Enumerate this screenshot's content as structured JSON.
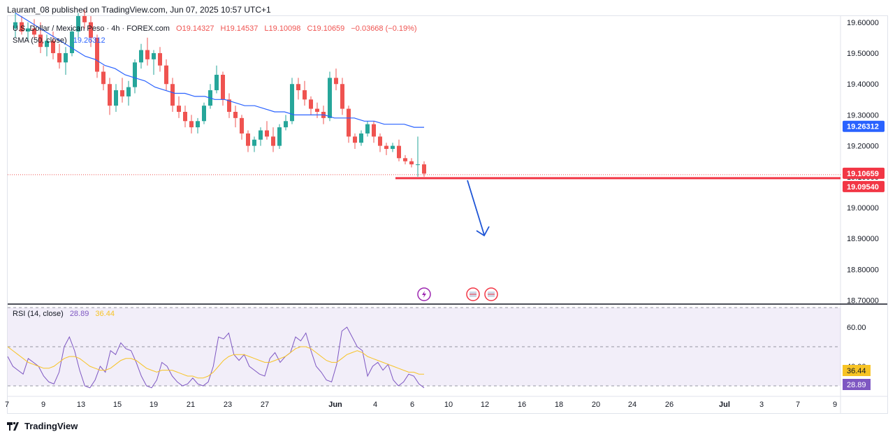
{
  "header": {
    "publisher": "Laurant_08 published on TradingView.com, Jun 07, 2025 10:57 UTC+1"
  },
  "legend": {
    "symbol": "U.S. Dollar / Mexican Peso · 4h · FOREX.com",
    "o": "O19.14327",
    "h": "H19.14537",
    "l": "L19.10098",
    "c": "C19.10659",
    "change": "−0.03668 (−0.19%)",
    "sma_label": "SMA (50, close)",
    "sma_value": "19.26312",
    "rsi_label": "RSI (14, close)",
    "rsi_value": "28.89",
    "rsi_ma_value": "36.44"
  },
  "footer": {
    "brand": "TradingView"
  },
  "colors": {
    "up": "#26a69a",
    "down": "#ef5350",
    "sma": "#2962ff",
    "rsi": "#7e57c2",
    "rsi_ma": "#f7c325",
    "level": "#f23645",
    "arrow": "#1e55d6"
  },
  "chart_data": [
    {
      "type": "candlestick",
      "title": "U.S. Dollar / Mexican Peso · 4h · FOREX.com",
      "y_ticks": [
        "19.60000",
        "19.50000",
        "19.40000",
        "19.30000",
        "19.20000",
        "19.10000",
        "19.00000",
        "18.90000",
        "18.80000",
        "18.70000"
      ],
      "ylim": [
        18.69,
        19.62
      ],
      "x_ticks": [
        "7",
        "9",
        "13",
        "15",
        "19",
        "21",
        "23",
        "27",
        "Jun",
        "4",
        "6",
        "10",
        "12",
        "16",
        "18",
        "20",
        "24",
        "26",
        "Jul",
        "3",
        "7",
        "9"
      ],
      "price_labels": {
        "sma": "19.26312",
        "last": "19.10659",
        "level": "19.09540"
      },
      "horizontal_level": 19.0954,
      "projection": "down-arrow",
      "event_icons": [
        "lightning-icon",
        "us-flag-icon",
        "us-flag-icon"
      ],
      "ohlc": [
        [
          19.58,
          19.63,
          19.55,
          19.6
        ],
        [
          19.6,
          19.62,
          19.56,
          19.57
        ],
        [
          19.57,
          19.6,
          19.54,
          19.58
        ],
        [
          19.58,
          19.61,
          19.55,
          19.56
        ],
        [
          19.56,
          19.6,
          19.5,
          19.52
        ],
        [
          19.52,
          19.56,
          19.49,
          19.54
        ],
        [
          19.54,
          19.57,
          19.48,
          19.5
        ],
        [
          19.5,
          19.53,
          19.45,
          19.47
        ],
        [
          19.47,
          19.52,
          19.43,
          19.5
        ],
        [
          19.5,
          19.58,
          19.49,
          19.57
        ],
        [
          19.57,
          19.63,
          19.55,
          19.62
        ],
        [
          19.62,
          19.64,
          19.58,
          19.6
        ],
        [
          19.6,
          19.62,
          19.52,
          19.55
        ],
        [
          19.55,
          19.56,
          19.42,
          19.44
        ],
        [
          19.44,
          19.46,
          19.38,
          19.4
        ],
        [
          19.4,
          19.42,
          19.3,
          19.33
        ],
        [
          19.33,
          19.4,
          19.31,
          19.38
        ],
        [
          19.38,
          19.42,
          19.34,
          19.36
        ],
        [
          19.36,
          19.41,
          19.33,
          19.39
        ],
        [
          19.39,
          19.48,
          19.37,
          19.47
        ],
        [
          19.47,
          19.53,
          19.45,
          19.51
        ],
        [
          19.51,
          19.55,
          19.46,
          19.48
        ],
        [
          19.48,
          19.51,
          19.43,
          19.5
        ],
        [
          19.5,
          19.52,
          19.44,
          19.46
        ],
        [
          19.46,
          19.48,
          19.38,
          19.4
        ],
        [
          19.4,
          19.42,
          19.31,
          19.33
        ],
        [
          19.33,
          19.36,
          19.29,
          19.31
        ],
        [
          19.31,
          19.33,
          19.26,
          19.28
        ],
        [
          19.28,
          19.3,
          19.24,
          19.26
        ],
        [
          19.26,
          19.29,
          19.24,
          19.28
        ],
        [
          19.28,
          19.34,
          19.27,
          19.33
        ],
        [
          19.33,
          19.4,
          19.32,
          19.38
        ],
        [
          19.38,
          19.46,
          19.37,
          19.43
        ],
        [
          19.43,
          19.44,
          19.33,
          19.35
        ],
        [
          19.35,
          19.37,
          19.29,
          19.31
        ],
        [
          19.31,
          19.33,
          19.26,
          19.29
        ],
        [
          19.29,
          19.3,
          19.22,
          19.24
        ],
        [
          19.24,
          19.25,
          19.18,
          19.2
        ],
        [
          19.2,
          19.23,
          19.18,
          19.22
        ],
        [
          19.22,
          19.26,
          19.2,
          19.25
        ],
        [
          19.25,
          19.28,
          19.22,
          19.23
        ],
        [
          19.23,
          19.26,
          19.18,
          19.2
        ],
        [
          19.2,
          19.27,
          19.19,
          19.26
        ],
        [
          19.26,
          19.3,
          19.25,
          19.28
        ],
        [
          19.28,
          19.42,
          19.27,
          19.4
        ],
        [
          19.4,
          19.42,
          19.35,
          19.38
        ],
        [
          19.38,
          19.41,
          19.33,
          19.35
        ],
        [
          19.35,
          19.36,
          19.3,
          19.32
        ],
        [
          19.32,
          19.34,
          19.29,
          19.31
        ],
        [
          19.31,
          19.33,
          19.27,
          19.29
        ],
        [
          19.29,
          19.44,
          19.28,
          19.42
        ],
        [
          19.42,
          19.45,
          19.38,
          19.4
        ],
        [
          19.4,
          19.42,
          19.3,
          19.32
        ],
        [
          19.32,
          19.33,
          19.21,
          19.23
        ],
        [
          19.23,
          19.24,
          19.19,
          19.21
        ],
        [
          19.21,
          19.25,
          19.2,
          19.24
        ],
        [
          19.24,
          19.28,
          19.23,
          19.27
        ],
        [
          19.27,
          19.28,
          19.21,
          19.23
        ],
        [
          19.23,
          19.24,
          19.18,
          19.2
        ],
        [
          19.2,
          19.21,
          19.17,
          19.19
        ],
        [
          19.19,
          19.21,
          19.18,
          19.2
        ],
        [
          19.2,
          19.22,
          19.15,
          19.16
        ],
        [
          19.16,
          19.17,
          19.14,
          19.15
        ],
        [
          19.15,
          19.16,
          19.13,
          19.14
        ],
        [
          19.14,
          19.23,
          19.1,
          19.14
        ],
        [
          19.14,
          19.15,
          19.1,
          19.11
        ]
      ],
      "sma": [
        19.63,
        19.61,
        19.59,
        19.57,
        19.55,
        19.53,
        19.51,
        19.49,
        19.48,
        19.46,
        19.45,
        19.43,
        19.42,
        19.41,
        19.39,
        19.38,
        19.37,
        19.37,
        19.36,
        19.36,
        19.35,
        19.35,
        19.34,
        19.33,
        19.33,
        19.32,
        19.31,
        19.31,
        19.3,
        19.3,
        19.3,
        19.3,
        19.29,
        19.29,
        19.29,
        19.28,
        19.28,
        19.27,
        19.27,
        19.27,
        19.26,
        19.26
      ],
      "sma_x_start": 0,
      "sma_x_end": 65
    },
    {
      "type": "line",
      "title": "RSI (14, close)",
      "y_ticks": [
        "60.00",
        "40.00"
      ],
      "ylim": [
        25,
        70
      ],
      "bands": [
        70,
        50,
        30
      ],
      "series": [
        {
          "name": "RSI",
          "values": [
            45,
            40,
            38,
            36,
            44,
            42,
            40,
            35,
            32,
            31,
            37,
            50,
            55,
            48,
            38,
            30,
            29,
            33,
            40,
            37,
            48,
            46,
            52,
            49,
            48,
            42,
            35,
            30,
            29,
            33,
            42,
            40,
            35,
            32,
            30,
            31,
            34,
            31,
            30,
            32,
            40,
            55,
            54,
            57,
            46,
            43,
            46,
            40,
            38,
            36,
            35,
            44,
            47,
            42,
            45,
            47,
            55,
            53,
            57,
            48,
            40,
            37,
            33,
            32,
            41,
            58,
            60,
            55,
            50,
            48,
            35,
            40,
            42,
            38,
            41,
            33,
            30,
            32,
            36,
            35,
            31,
            29
          ]
        },
        {
          "name": "RSI MA",
          "values": [
            50,
            48,
            46,
            44,
            42,
            41,
            40,
            39,
            39,
            40,
            42,
            44,
            45,
            45,
            44,
            42,
            40,
            39,
            38,
            38,
            39,
            41,
            43,
            44,
            44,
            43,
            41,
            39,
            38,
            37,
            38,
            38,
            38,
            37,
            36,
            35,
            35,
            34,
            34,
            35,
            37,
            40,
            43,
            45,
            46,
            46,
            46,
            45,
            44,
            43,
            42,
            42,
            43,
            44,
            45,
            47,
            49,
            50,
            50,
            49,
            47,
            45,
            43,
            42,
            42,
            44,
            46,
            47,
            48,
            47,
            45,
            44,
            43,
            42,
            41,
            40,
            39,
            38,
            37,
            37,
            36,
            36
          ]
        }
      ]
    }
  ]
}
